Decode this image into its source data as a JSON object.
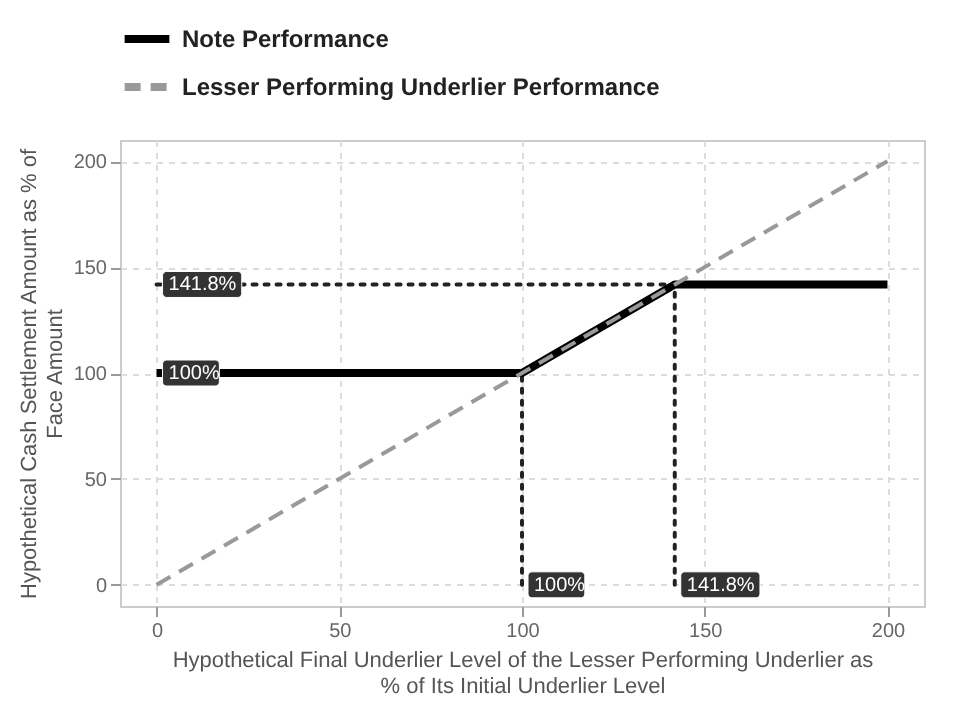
{
  "chart_data": {
    "type": "line",
    "xlabel": "Hypothetical Final Underlier Level of the Lesser Performing Underlier as % of Its Initial Underlier Level",
    "ylabel": "Hypothetical Cash Settlement Amount as % of Face Amount",
    "series": [
      {
        "type": "line",
        "x": [
          100,
          100
        ],
        "values": [
          0,
          100
        ],
        "color": "#222222",
        "line_style": "dotted"
      },
      {
        "type": "line",
        "x": [
          141.8,
          141.8
        ],
        "values": [
          0,
          141.8
        ],
        "color": "#222222",
        "line_style": "dotted"
      },
      {
        "type": "line",
        "x": [
          0,
          141.8
        ],
        "values": [
          141.8,
          141.8
        ],
        "color": "#222222",
        "line_style": "dotted"
      },
      {
        "name": "Note Performance",
        "type": "line",
        "x": [
          0,
          100,
          141.8,
          200
        ],
        "values": [
          100,
          100,
          141.8,
          141.8
        ],
        "color": "#000000",
        "line_style": "solid"
      },
      {
        "name": "Lesser Performing Underlier Performance",
        "type": "line",
        "x": [
          0,
          200
        ],
        "values": [
          0,
          200
        ],
        "color": "#999999",
        "line_style": "dashed"
      }
    ],
    "annotations": [
      {
        "text": "141.8%",
        "x": 0,
        "y": 141.8
      },
      {
        "text": "100%",
        "x": 0,
        "y": 100
      },
      {
        "text": "100%",
        "x": 100,
        "y": 0
      },
      {
        "text": "141.8%",
        "x": 141.8,
        "y": 0
      }
    ],
    "xlim": [
      -10,
      210
    ],
    "xticks": [
      0,
      50,
      100,
      150,
      200
    ],
    "ylim": [
      -10,
      210
    ],
    "yticks": [
      0,
      50,
      100,
      150,
      200
    ],
    "grid": true,
    "legend": "top"
  }
}
